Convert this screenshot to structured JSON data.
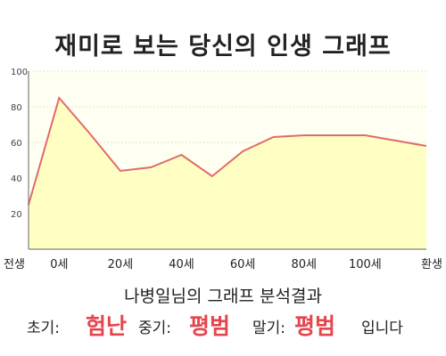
{
  "title": "재미로 보는 당신의 인생 그래프",
  "subtitle": "나병일님의 그래프 분석결과",
  "result": {
    "early_label": "초기:",
    "early_value": "험난",
    "mid_label": "중기:",
    "mid_value": "평범",
    "late_label": "말기:",
    "late_value": "평범",
    "suffix": "입니다"
  },
  "colors": {
    "line": "#e26a6a",
    "fill": "#ffffc4",
    "plot_bg": "#fffff2",
    "accent_text": "#e5464e"
  },
  "chart_data": {
    "type": "area",
    "title": "재미로 보는 당신의 인생 그래프",
    "xlabel": "",
    "ylabel": "",
    "ylim": [
      0,
      100
    ],
    "y_ticks": [
      "20",
      "40",
      "60",
      "80",
      "100"
    ],
    "x_tick_labels": [
      "전생",
      "0세",
      "20세",
      "40세",
      "60세",
      "80세",
      "100세",
      "환생"
    ],
    "grid": true,
    "legend": "none",
    "series": [
      {
        "x": [
          "전생",
          "0세",
          "10세",
          "20세",
          "30세",
          "40세",
          "50세",
          "60세",
          "70세",
          "80세",
          "90세",
          "100세",
          "110세",
          "환생"
        ],
        "values": [
          25,
          85,
          65,
          44,
          46,
          53,
          41,
          55,
          63,
          64,
          64,
          64,
          61,
          58
        ]
      }
    ]
  }
}
